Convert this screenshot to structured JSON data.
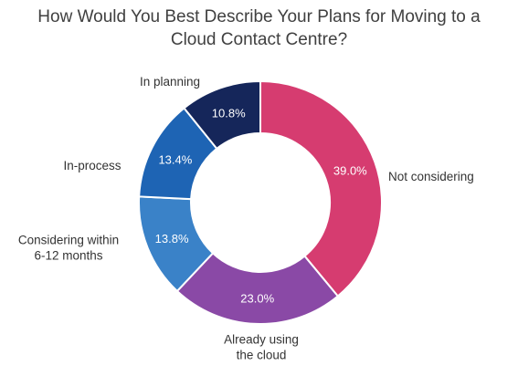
{
  "chart_data": {
    "type": "pie",
    "title_lines": [
      "How Would You Best Describe Your Plans for Moving to a",
      "Cloud Contact Centre?"
    ],
    "slices": [
      {
        "label_lines": [
          "Not considering"
        ],
        "value": 39.0,
        "value_label": "39.0%",
        "color": "#d63c70"
      },
      {
        "label_lines": [
          "Already using",
          "the cloud"
        ],
        "value": 23.0,
        "value_label": "23.0%",
        "color": "#8a49a6"
      },
      {
        "label_lines": [
          "Considering within",
          "6-12 months"
        ],
        "value": 13.8,
        "value_label": "13.8%",
        "color": "#3a82c8"
      },
      {
        "label_lines": [
          "In-process"
        ],
        "value": 13.4,
        "value_label": "13.4%",
        "color": "#1e64b4"
      },
      {
        "label_lines": [
          "In planning"
        ],
        "value": 10.8,
        "value_label": "10.8%",
        "color": "#15265a"
      }
    ],
    "donut": true
  }
}
